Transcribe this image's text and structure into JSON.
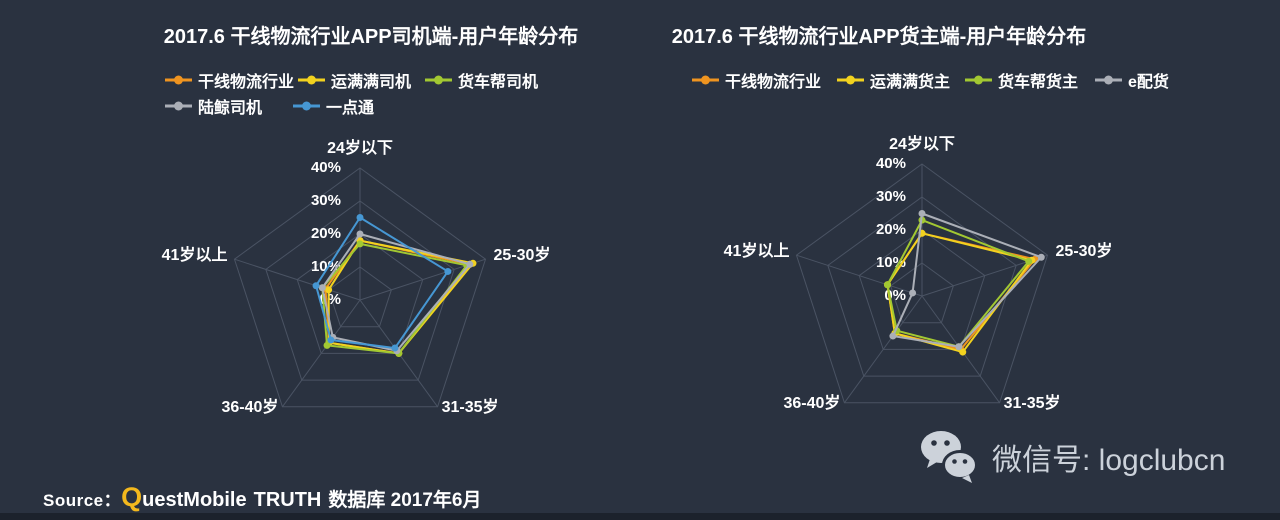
{
  "page": {
    "background_color": "#2a3240",
    "grid_color": "#4a5363",
    "text_color": "#ffffff"
  },
  "chart_data": [
    {
      "type": "radar",
      "title": "2017.6 干线物流行业APP司机端-用户年龄分布",
      "categories": [
        "24岁以下",
        "25-30岁",
        "31-35岁",
        "36-40岁",
        "41岁以上"
      ],
      "tick_labels": [
        "0%",
        "10%",
        "20%",
        "30%",
        "40%"
      ],
      "rmin": 0,
      "rmax": 40,
      "unit": "%",
      "grid": true,
      "legend_position": "top",
      "series": [
        {
          "name": "干线物流行业",
          "color": "#ef9420",
          "values": [
            18,
            35,
            20,
            16,
            11
          ]
        },
        {
          "name": "运满满司机",
          "color": "#f2d21f",
          "values": [
            18,
            36,
            20,
            16,
            10
          ]
        },
        {
          "name": "货车帮司机",
          "color": "#a2c832",
          "values": [
            17,
            34,
            20,
            17,
            12
          ]
        },
        {
          "name": "陆鲸司机",
          "color": "#abafb7",
          "values": [
            20,
            35,
            19,
            14,
            12
          ]
        },
        {
          "name": "一点通",
          "color": "#4697d3",
          "values": [
            25,
            28,
            18,
            15,
            14
          ]
        }
      ]
    },
    {
      "type": "radar",
      "title": "2017.6 干线物流行业APP货主端-用户年龄分布",
      "categories": [
        "24岁以下",
        "25-30岁",
        "31-35岁",
        "36-40岁",
        "41岁以上"
      ],
      "tick_labels": [
        "0%",
        "10%",
        "20%",
        "30%",
        "40%"
      ],
      "rmin": 0,
      "rmax": 40,
      "unit": "%",
      "grid": true,
      "legend_position": "top",
      "series": [
        {
          "name": "干线物流行业",
          "color": "#ef9420",
          "values": [
            19,
            36,
            20,
            14,
            11
          ]
        },
        {
          "name": "运满满货主",
          "color": "#f2d21f",
          "values": [
            19,
            35,
            21,
            14,
            11
          ]
        },
        {
          "name": "货车帮货主",
          "color": "#a2c832",
          "values": [
            23,
            34,
            19,
            13,
            11
          ]
        },
        {
          "name": "e配货",
          "color": "#abafb7",
          "values": [
            25,
            38,
            19,
            15,
            3
          ]
        }
      ]
    }
  ],
  "source_line": {
    "prefix": "Source：",
    "brand_initial": "Q",
    "brand_rest": "uestMobile",
    "middle": "TRUTH",
    "suffix": "数据库 2017年6月",
    "brand_initial_color": "#f3b81d"
  },
  "wechat": {
    "label": "微信号: logclubcn",
    "color": "#ccd2da"
  }
}
